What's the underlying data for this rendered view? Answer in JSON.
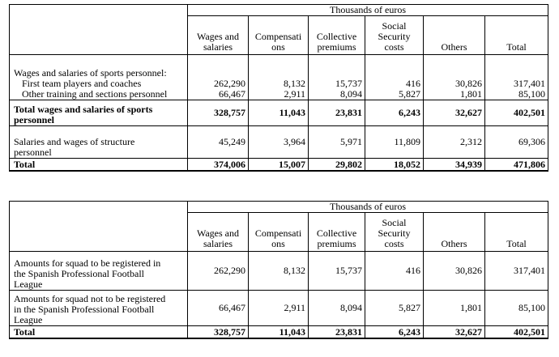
{
  "unit_header": "Thousands of euros",
  "columns": [
    [
      "Wages and",
      "salaries"
    ],
    [
      "Compensati",
      "ons"
    ],
    [
      "Collective",
      "premiums"
    ],
    [
      "Social",
      "Security",
      "costs"
    ],
    [
      "Others"
    ],
    [
      "Total"
    ]
  ],
  "table1": {
    "section_label": "Wages and salaries of sports personnel:",
    "rows": [
      {
        "label": "First team players and coaches",
        "values": [
          "262,290",
          "8,132",
          "15,737",
          "416",
          "30,826",
          "317,401"
        ]
      },
      {
        "label": "Other training and sections personnel",
        "values": [
          "66,467",
          "2,911",
          "8,094",
          "5,827",
          "1,801",
          "85,100"
        ]
      }
    ],
    "total_sports": {
      "label_lines": [
        "Total wages and salaries of sports",
        "personnel"
      ],
      "values": [
        "328,757",
        "11,043",
        "23,831",
        "6,243",
        "32,627",
        "402,501"
      ]
    },
    "structure": {
      "label_lines": [
        "Salaries and wages of structure",
        "personnel"
      ],
      "values": [
        "45,249",
        "3,964",
        "5,971",
        "11,809",
        "2,312",
        "69,306"
      ]
    },
    "total": {
      "label": "Total",
      "values": [
        "374,006",
        "15,007",
        "29,802",
        "18,052",
        "34,939",
        "471,806"
      ]
    }
  },
  "table2": {
    "rows": [
      {
        "label_lines": [
          "Amounts for squad to be registered in",
          "the Spanish Professional Football",
          "League"
        ],
        "values": [
          "262,290",
          "8,132",
          "15,737",
          "416",
          "30,826",
          "317,401"
        ]
      },
      {
        "label_lines": [
          "Amounts for squad not to be registered",
          "in the Spanish Professional Football",
          "League"
        ],
        "values": [
          "66,467",
          "2,911",
          "8,094",
          "5,827",
          "1,801",
          "85,100"
        ]
      }
    ],
    "total": {
      "label": "Total",
      "values": [
        "328,757",
        "11,043",
        "23,831",
        "6,243",
        "32,627",
        "402,501"
      ]
    }
  }
}
